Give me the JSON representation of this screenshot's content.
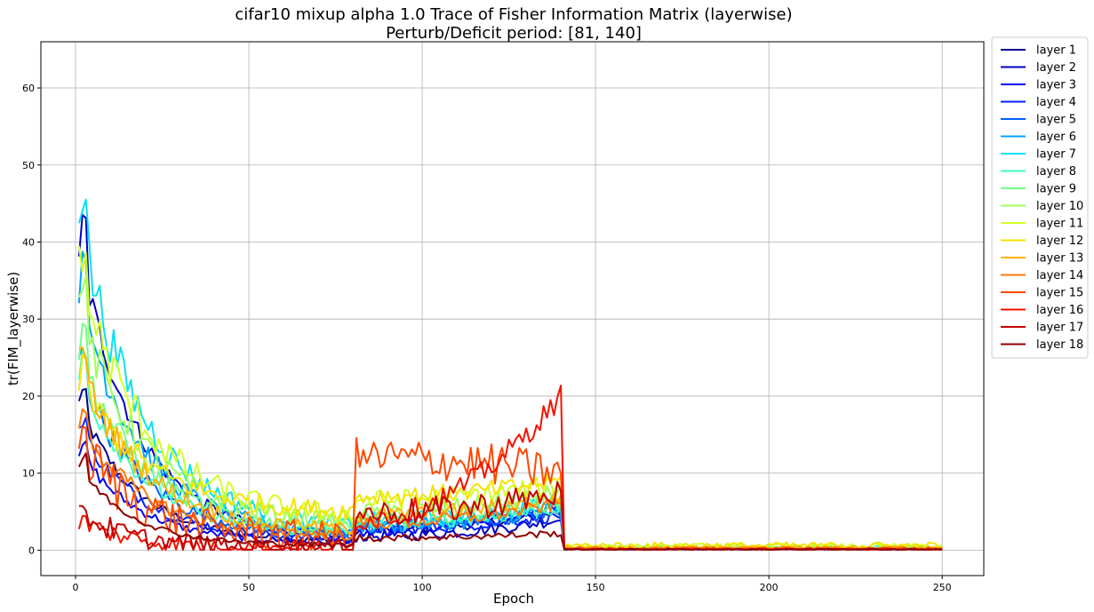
{
  "chart_data": {
    "type": "line",
    "title": "cifar10 mixup alpha 1.0 Trace of Fisher Information Matrix (layerwise)",
    "subtitle": "Perturb/Deficit period: [81, 140]",
    "xlabel": "Epoch",
    "ylabel": "tr(FIM_layerwise)",
    "xlim": [
      -10,
      262
    ],
    "ylim": [
      -3.3,
      66
    ],
    "xticks": [
      0,
      50,
      100,
      150,
      200,
      250
    ],
    "yticks": [
      0,
      10,
      20,
      30,
      40,
      50,
      60
    ],
    "grid": true,
    "legend_position": "outside-right",
    "x_range": [
      1,
      250
    ],
    "series": [
      {
        "name": "layer 1",
        "color": "#00008f",
        "start": 19,
        "decay": 2.4,
        "plateau": 1.0,
        "perturb": 2.5,
        "perturb_end": 5.0,
        "after": 0.15,
        "noise": 0.4
      },
      {
        "name": "layer 2",
        "color": "#0000c4",
        "start": 39,
        "decay": 2.7,
        "plateau": 1.3,
        "perturb": 1.8,
        "perturb_end": 4.0,
        "after": 0.2,
        "noise": 0.5
      },
      {
        "name": "layer 3",
        "color": "#0000f5",
        "start": 13,
        "decay": 2.5,
        "plateau": 0.9,
        "perturb": 2.2,
        "perturb_end": 6.0,
        "after": 0.15,
        "noise": 0.4
      },
      {
        "name": "layer 4",
        "color": "#0024ff",
        "start": 16,
        "decay": 2.8,
        "plateau": 1.4,
        "perturb": 2.8,
        "perturb_end": 4.5,
        "after": 0.2,
        "noise": 0.5
      },
      {
        "name": "layer 5",
        "color": "#0060ff",
        "start": 24,
        "decay": 2.6,
        "plateau": 1.8,
        "perturb": 3.0,
        "perturb_end": 5.0,
        "after": 0.2,
        "noise": 0.6
      },
      {
        "name": "layer 6",
        "color": "#00a4ff",
        "start": 34,
        "decay": 2.8,
        "plateau": 2.0,
        "perturb": 3.2,
        "perturb_end": 5.5,
        "after": 0.25,
        "noise": 0.7
      },
      {
        "name": "layer 7",
        "color": "#0ae0f5",
        "start": 43,
        "decay": 3.2,
        "plateau": 2.8,
        "perturb": 3.8,
        "perturb_end": 6.0,
        "after": 0.3,
        "noise": 0.8
      },
      {
        "name": "layer 8",
        "color": "#3effbe",
        "start": 23,
        "decay": 3.0,
        "plateau": 2.0,
        "perturb": 3.5,
        "perturb_end": 5.5,
        "after": 0.25,
        "noise": 0.6
      },
      {
        "name": "layer 9",
        "color": "#6eff8a",
        "start": 26,
        "decay": 3.2,
        "plateau": 2.5,
        "perturb": 4.2,
        "perturb_end": 6.5,
        "after": 0.3,
        "noise": 0.7
      },
      {
        "name": "layer 10",
        "color": "#9eff59",
        "start": 31,
        "decay": 3.6,
        "plateau": 3.2,
        "perturb": 5.0,
        "perturb_end": 7.5,
        "after": 0.35,
        "noise": 0.8
      },
      {
        "name": "layer 11",
        "color": "#d2ff25",
        "start": 36,
        "decay": 3.8,
        "plateau": 4.0,
        "perturb": 6.5,
        "perturb_end": 8.5,
        "after": 0.5,
        "noise": 0.9
      },
      {
        "name": "layer 12",
        "color": "#f5e300",
        "start": 22,
        "decay": 4.0,
        "plateau": 4.8,
        "perturb": 7.0,
        "perturb_end": 9.0,
        "after": 0.6,
        "noise": 0.8
      },
      {
        "name": "layer 13",
        "color": "#ffb200",
        "start": 24,
        "decay": 3.4,
        "plateau": 2.4,
        "perturb": 4.5,
        "perturb_end": 7.0,
        "after": 0.3,
        "noise": 0.7
      },
      {
        "name": "layer 14",
        "color": "#ff7a00",
        "start": 17,
        "decay": 3.0,
        "plateau": 1.8,
        "perturb": 3.5,
        "perturb_end": 6.0,
        "after": 0.25,
        "noise": 0.6
      },
      {
        "name": "layer 15",
        "color": "#ff4800",
        "start": 14,
        "decay": 2.8,
        "plateau": 1.5,
        "perturb": 12.0,
        "perturb_end": 10.0,
        "after": 0.2,
        "noise": 1.8
      },
      {
        "name": "layer 16",
        "color": "#f51100",
        "start": 4,
        "decay": 1.2,
        "plateau": 0.3,
        "perturb": 4.0,
        "perturb_end": 20.0,
        "after": 0.1,
        "noise": 1.0
      },
      {
        "name": "layer 17",
        "color": "#c40000",
        "start": 5,
        "decay": 1.0,
        "plateau": 0.3,
        "perturb": 4.8,
        "perturb_end": 7.5,
        "after": 0.1,
        "noise": 1.2
      },
      {
        "name": "layer 18",
        "color": "#8f0000",
        "start": 11,
        "decay": 1.6,
        "plateau": 0.6,
        "perturb": 1.6,
        "perturb_end": 2.2,
        "after": 0.1,
        "noise": 0.3
      }
    ]
  }
}
